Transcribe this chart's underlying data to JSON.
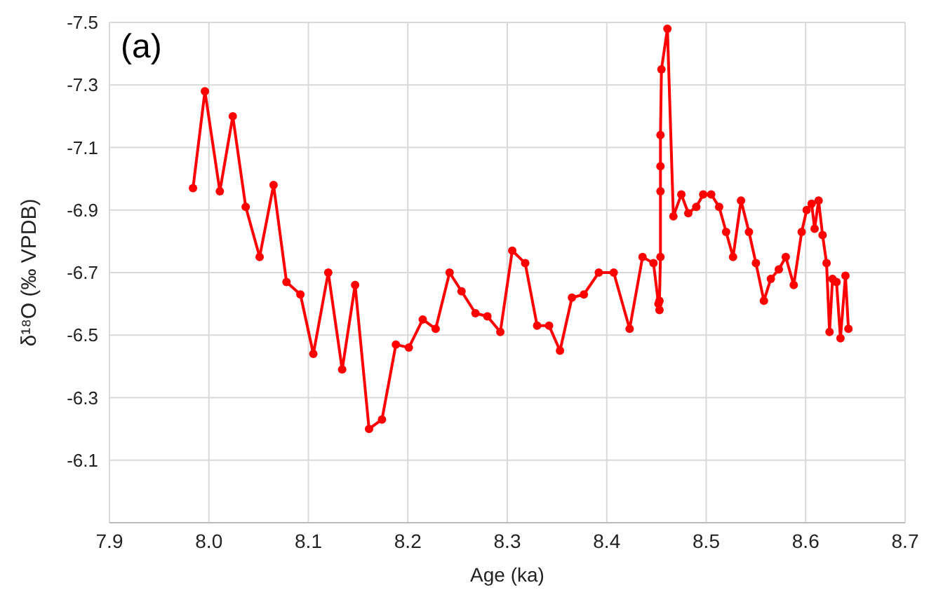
{
  "chart_data": {
    "type": "line",
    "ylabel": "δ¹⁸O (‰ VPDB)",
    "xlabel": "Age (ka)",
    "annotations": [
      "(a)"
    ],
    "x": [
      7.984,
      7.996,
      8.011,
      8.024,
      8.037,
      8.051,
      8.065,
      8.078,
      8.092,
      8.105,
      8.12,
      8.134,
      8.147,
      8.161,
      8.174,
      8.188,
      8.201,
      8.215,
      8.228,
      8.242,
      8.254,
      8.268,
      8.28,
      8.293,
      8.305,
      8.318,
      8.33,
      8.342,
      8.353,
      8.365,
      8.377,
      8.392,
      8.407,
      8.423,
      8.436,
      8.447,
      8.452,
      8.453,
      8.453,
      8.454,
      8.454,
      8.454,
      8.454,
      8.455,
      8.461,
      8.467,
      8.475,
      8.482,
      8.49,
      8.497,
      8.505,
      8.513,
      8.52,
      8.527,
      8.535,
      8.543,
      8.55,
      8.558,
      8.565,
      8.573,
      8.58,
      8.588,
      8.596,
      8.601,
      8.606,
      8.609,
      8.613,
      8.617,
      8.621,
      8.624,
      8.627,
      8.631,
      8.635,
      8.64,
      8.643
    ],
    "series": [
      {
        "color": "#ff0000",
        "values": [
          -6.97,
          -7.28,
          -6.96,
          -7.2,
          -6.91,
          -6.75,
          -6.98,
          -6.67,
          -6.63,
          -6.44,
          -6.7,
          -6.39,
          -6.66,
          -6.2,
          -6.23,
          -6.47,
          -6.46,
          -6.55,
          -6.52,
          -6.7,
          -6.64,
          -6.57,
          -6.56,
          -6.51,
          -6.77,
          -6.73,
          -6.53,
          -6.53,
          -6.45,
          -6.62,
          -6.63,
          -6.7,
          -6.7,
          -6.52,
          -6.75,
          -6.73,
          -6.6,
          -6.58,
          -6.61,
          -6.75,
          -6.96,
          -7.04,
          -7.14,
          -7.35,
          -7.48,
          -6.88,
          -6.95,
          -6.89,
          -6.91,
          -6.95,
          -6.95,
          -6.91,
          -6.83,
          -6.75,
          -6.93,
          -6.83,
          -6.73,
          -6.61,
          -6.68,
          -6.71,
          -6.75,
          -6.66,
          -6.83,
          -6.9,
          -6.92,
          -6.84,
          -6.93,
          -6.82,
          -6.73,
          -6.51,
          -6.68,
          -6.67,
          -6.49,
          -6.69,
          -6.52
        ]
      }
    ],
    "xlim": [
      7.9,
      8.7
    ],
    "xticks": [
      7.9,
      {
        "value": 8,
        "label": "8.0"
      },
      8.1,
      8.2,
      8.3,
      8.4,
      8.5,
      8.6,
      8.7
    ],
    "ylim": [
      -5.9,
      -7.5
    ],
    "yticks": [
      {
        "value": -5.9,
        "label": null
      },
      -6.1,
      -6.3,
      -6.5,
      -6.7,
      -6.9,
      -7.1,
      -7.3,
      -7.5
    ],
    "grid": true,
    "marker": "circle",
    "line_style": "solid",
    "legend": false
  }
}
